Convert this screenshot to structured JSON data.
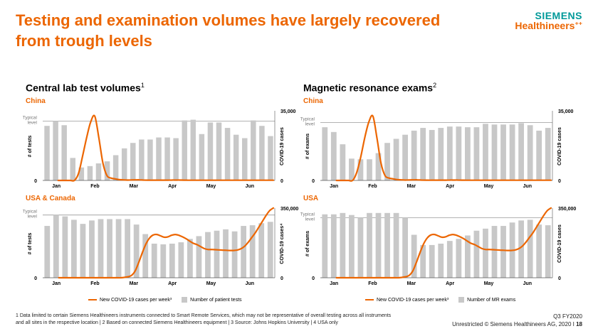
{
  "title": "Testing and examination volumes have largely recovered from trough levels",
  "logo": {
    "line1": "SIEMENS",
    "line2": "Healthineers",
    "dots": "⁺⁺"
  },
  "sections": {
    "left": {
      "title": "Central lab test volumes",
      "sup": "1"
    },
    "right": {
      "title": "Magnetic resonance exams",
      "sup": "2"
    }
  },
  "charts": [
    {
      "region": "China",
      "legend": null
    },
    {
      "region": "USA & Canada",
      "legend": {
        "line": "New COVID-19 cases per week³",
        "bar": "Number of patient tests"
      }
    },
    {
      "region": "China",
      "legend": null
    },
    {
      "region": "USA",
      "legend": {
        "line": "New COVID-19 cases per week³",
        "bar": "Number of MR exams"
      }
    }
  ],
  "chart_data": [
    {
      "type": "bar",
      "title": "Central lab test volumes — China",
      "months": [
        "Jan",
        "Feb",
        "Mar",
        "Apr",
        "May",
        "Jun"
      ],
      "typical_label": [
        "Typical",
        "level"
      ],
      "typical_level": 87,
      "ylabel": "# of tests",
      "y2label": "COVID-19 cases",
      "y2ticks": [
        "0",
        "35,000"
      ],
      "y2lim": [
        0,
        35000
      ],
      "bars": [
        80,
        87,
        81,
        33,
        19,
        21,
        25,
        28,
        37,
        47,
        55,
        60,
        60,
        63,
        63,
        62,
        88,
        89,
        68,
        85,
        85,
        77,
        67,
        62,
        88,
        80,
        65
      ],
      "cases": [
        0,
        0,
        0,
        0,
        0,
        3500,
        12500,
        22000,
        30000,
        33000,
        22000,
        9000,
        2500,
        1200,
        800,
        400,
        300,
        200,
        250,
        300,
        300,
        200,
        150,
        100,
        150,
        150,
        150,
        150,
        200,
        200,
        200,
        150,
        100,
        100,
        100,
        100,
        100,
        100,
        100,
        100,
        100,
        100,
        100,
        100,
        100,
        100,
        100,
        100,
        100,
        100,
        100,
        100,
        100,
        100
      ]
    },
    {
      "type": "bar",
      "title": "Central lab test volumes — USA & Canada",
      "months": [
        "Jan",
        "Feb",
        "Mar",
        "Apr",
        "May",
        "Jun"
      ],
      "typical_label": [
        "Typical",
        "level"
      ],
      "typical_level": 92,
      "ylabel": "# of tests",
      "y2label": "COVID-19 cases⁴",
      "y2ticks": [
        "0",
        "350,000"
      ],
      "y2lim": [
        0,
        350000
      ],
      "bars": [
        76,
        92,
        90,
        85,
        79,
        84,
        86,
        86,
        86,
        86,
        78,
        64,
        50,
        49,
        50,
        52,
        57,
        61,
        67,
        69,
        71,
        68,
        76,
        77,
        80,
        82
      ],
      "cases": [
        0,
        0,
        0,
        0,
        0,
        0,
        0,
        0,
        0,
        0,
        0,
        0,
        0,
        0,
        0,
        0,
        0,
        0,
        2000,
        5000,
        12000,
        35000,
        80000,
        130000,
        175000,
        205000,
        220000,
        222000,
        215000,
        208000,
        210000,
        218000,
        222000,
        218000,
        210000,
        200000,
        188000,
        177000,
        170000,
        160000,
        150000,
        145000,
        145000,
        144000,
        143000,
        142000,
        141000,
        140000,
        140000,
        142000,
        148000,
        160000,
        180000,
        205000,
        230000,
        260000,
        290000,
        320000,
        345000,
        358000
      ]
    },
    {
      "type": "bar",
      "title": "Magnetic resonance exams — China",
      "months": [
        "Jan",
        "Feb",
        "Mar",
        "Apr",
        "May",
        "Jun"
      ],
      "typical_label": [
        "Typical",
        "level"
      ],
      "typical_level": 85,
      "ylabel": "# of exams",
      "y2label": "COVID-19 cases",
      "y2ticks": [
        "0",
        "35,000"
      ],
      "y2lim": [
        0,
        35000
      ],
      "bars": [
        78,
        71,
        53,
        32,
        31,
        31,
        40,
        55,
        61,
        67,
        73,
        77,
        74,
        77,
        79,
        79,
        78,
        78,
        83,
        82,
        82,
        82,
        84,
        81,
        73,
        77
      ],
      "cases": [
        0,
        0,
        0,
        0,
        0,
        4000,
        12000,
        22000,
        30000,
        33000,
        22000,
        9000,
        2500,
        1200,
        800,
        400,
        300,
        200,
        250,
        300,
        300,
        200,
        150,
        100,
        150,
        150,
        150,
        150,
        200,
        200,
        200,
        150,
        100,
        100,
        100,
        100,
        100,
        100,
        100,
        100,
        100,
        100,
        100,
        100,
        100,
        100,
        100,
        100,
        100,
        100,
        100,
        100,
        100,
        100
      ]
    },
    {
      "type": "bar",
      "title": "Magnetic resonance exams — USA",
      "months": [
        "Jan",
        "Feb",
        "Mar",
        "Apr",
        "May",
        "Jun"
      ],
      "typical_label": [
        "Typical",
        "level"
      ],
      "typical_level": 88,
      "ylabel": "# of exams",
      "y2label": "COVID-19 cases",
      "y2ticks": [
        "0",
        "350,000"
      ],
      "y2lim": [
        0,
        350000
      ],
      "bars": [
        93,
        93,
        95,
        92,
        88,
        95,
        95,
        95,
        95,
        88,
        63,
        48,
        48,
        50,
        54,
        57,
        62,
        69,
        72,
        76,
        76,
        81,
        84,
        85,
        78,
        77
      ],
      "cases": [
        0,
        0,
        0,
        0,
        0,
        0,
        0,
        0,
        0,
        0,
        0,
        0,
        0,
        0,
        0,
        0,
        0,
        0,
        2000,
        5000,
        12000,
        35000,
        80000,
        130000,
        175000,
        205000,
        220000,
        222000,
        215000,
        208000,
        210000,
        218000,
        222000,
        218000,
        210000,
        200000,
        188000,
        177000,
        170000,
        160000,
        150000,
        145000,
        145000,
        144000,
        143000,
        142000,
        141000,
        140000,
        140000,
        142000,
        148000,
        160000,
        180000,
        205000,
        230000,
        260000,
        290000,
        320000,
        345000,
        358000
      ]
    }
  ],
  "footnote": {
    "line1": "1 Data limited to certain Siemens Healthineers instruments connected to Smart Remote Services, which may not be representative of overall testing across all instruments",
    "line2": "and all sites in the respective location  | 2 Based on connected Siemens Healthineers equipment  | 3 Source: Johns Hopkins University  | 4 USA only"
  },
  "corner": {
    "quarter": "Q3 FY2020",
    "copyright": "Unrestricted © Siemens Healthineers AG, 2020 I",
    "page": "18"
  }
}
